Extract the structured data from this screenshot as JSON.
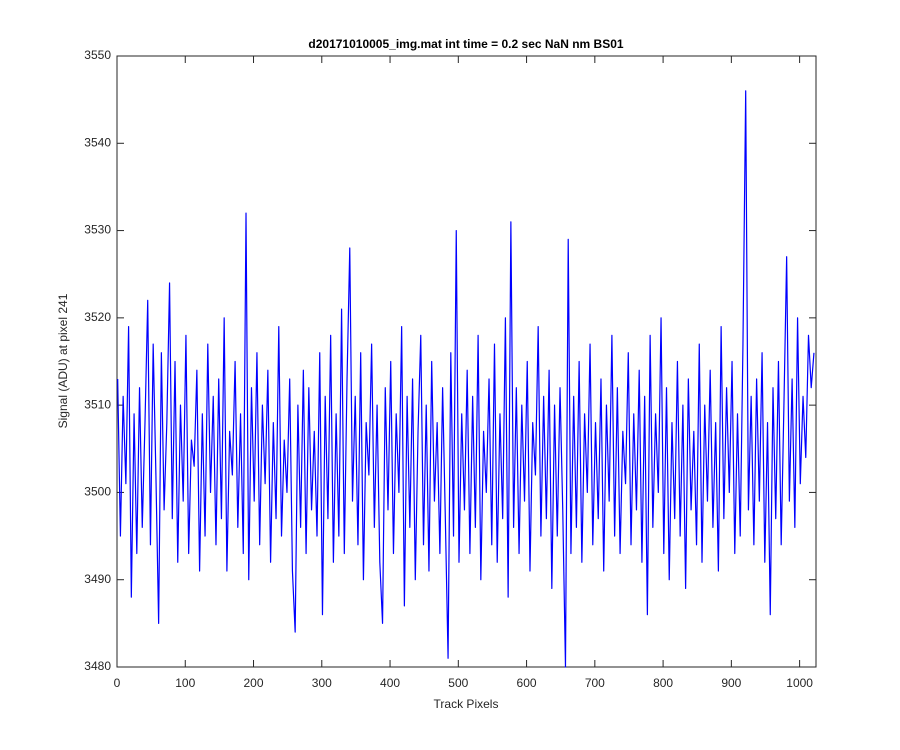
{
  "chart_data": {
    "type": "line",
    "title": "d20171010005_img.mat int time = 0.2 sec  NaN nm BS01",
    "xlabel": "Track Pixels",
    "ylabel": "Signal (ADU) at pixel 241",
    "xlim": [
      0,
      1024
    ],
    "ylim": [
      3480,
      3550
    ],
    "xticks": [
      0,
      100,
      200,
      300,
      400,
      500,
      600,
      700,
      800,
      900,
      1000
    ],
    "yticks": [
      3480,
      3490,
      3500,
      3510,
      3520,
      3530,
      3540,
      3550
    ],
    "grid": false,
    "x": [
      1,
      5,
      9,
      13,
      17,
      21,
      25,
      29,
      33,
      37,
      41,
      45,
      49,
      53,
      57,
      61,
      65,
      69,
      73,
      77,
      81,
      85,
      89,
      93,
      97,
      101,
      105,
      109,
      113,
      117,
      121,
      125,
      129,
      133,
      137,
      141,
      145,
      149,
      153,
      157,
      161,
      165,
      169,
      173,
      177,
      181,
      185,
      189,
      193,
      197,
      201,
      205,
      209,
      213,
      217,
      221,
      225,
      229,
      233,
      237,
      241,
      245,
      249,
      253,
      257,
      261,
      265,
      269,
      273,
      277,
      281,
      285,
      289,
      293,
      297,
      301,
      305,
      309,
      313,
      317,
      321,
      325,
      329,
      333,
      337,
      341,
      345,
      349,
      353,
      357,
      361,
      365,
      369,
      373,
      377,
      381,
      385,
      389,
      393,
      397,
      401,
      405,
      409,
      413,
      417,
      421,
      425,
      429,
      433,
      437,
      441,
      445,
      449,
      453,
      457,
      461,
      465,
      469,
      473,
      477,
      481,
      485,
      489,
      493,
      497,
      501,
      505,
      509,
      513,
      517,
      521,
      525,
      529,
      533,
      537,
      541,
      545,
      549,
      553,
      557,
      561,
      565,
      569,
      573,
      577,
      581,
      585,
      589,
      593,
      597,
      601,
      605,
      609,
      613,
      617,
      621,
      625,
      629,
      633,
      637,
      641,
      645,
      649,
      653,
      657,
      661,
      665,
      669,
      673,
      677,
      681,
      685,
      689,
      693,
      697,
      701,
      705,
      709,
      713,
      717,
      721,
      725,
      729,
      733,
      737,
      741,
      745,
      749,
      753,
      757,
      761,
      765,
      769,
      773,
      777,
      781,
      785,
      789,
      793,
      797,
      801,
      805,
      809,
      813,
      817,
      821,
      825,
      829,
      833,
      837,
      841,
      845,
      849,
      853,
      857,
      861,
      865,
      869,
      873,
      877,
      881,
      885,
      889,
      893,
      897,
      901,
      905,
      909,
      913,
      917,
      921,
      925,
      929,
      933,
      937,
      941,
      945,
      949,
      953,
      957,
      961,
      965,
      969,
      973,
      977,
      981,
      985,
      989,
      993,
      997,
      1001,
      1005,
      1009,
      1013,
      1017,
      1021
    ],
    "series": [
      {
        "color": "#0000ff",
        "values": [
          3513,
          3495,
          3511,
          3501,
          3519,
          3488,
          3509,
          3493,
          3512,
          3496,
          3508,
          3522,
          3494,
          3517,
          3502,
          3485,
          3516,
          3498,
          3508,
          3524,
          3497,
          3515,
          3492,
          3510,
          3499,
          3518,
          3493,
          3506,
          3503,
          3514,
          3491,
          3509,
          3495,
          3517,
          3500,
          3511,
          3494,
          3513,
          3497,
          3520,
          3491,
          3507,
          3502,
          3515,
          3496,
          3509,
          3493,
          3532,
          3490,
          3512,
          3499,
          3516,
          3494,
          3510,
          3501,
          3514,
          3492,
          3508,
          3497,
          3519,
          3495,
          3506,
          3500,
          3513,
          3491,
          3484,
          3510,
          3496,
          3514,
          3493,
          3512,
          3498,
          3507,
          3495,
          3516,
          3486,
          3511,
          3497,
          3518,
          3492,
          3509,
          3495,
          3521,
          3493,
          3513,
          3528,
          3499,
          3511,
          3494,
          3516,
          3490,
          3508,
          3502,
          3517,
          3496,
          3510,
          3492,
          3485,
          3512,
          3498,
          3515,
          3493,
          3509,
          3500,
          3519,
          3487,
          3511,
          3496,
          3513,
          3490,
          3507,
          3518,
          3494,
          3510,
          3491,
          3515,
          3499,
          3508,
          3493,
          3512,
          3497,
          3481,
          3516,
          3495,
          3530,
          3492,
          3509,
          3498,
          3514,
          3493,
          3511,
          3496,
          3518,
          3490,
          3507,
          3500,
          3513,
          3494,
          3517,
          3492,
          3509,
          3497,
          3520,
          3488,
          3531,
          3496,
          3512,
          3493,
          3510,
          3499,
          3515,
          3491,
          3508,
          3502,
          3519,
          3495,
          3511,
          3497,
          3514,
          3489,
          3510,
          3495,
          3512,
          3498,
          3480,
          3529,
          3493,
          3511,
          3496,
          3515,
          3492,
          3509,
          3500,
          3517,
          3494,
          3508,
          3497,
          3513,
          3491,
          3510,
          3499,
          3518,
          3495,
          3512,
          3493,
          3507,
          3501,
          3516,
          3494,
          3509,
          3498,
          3514,
          3492,
          3511,
          3486,
          3518,
          3496,
          3509,
          3500,
          3520,
          3493,
          3512,
          3490,
          3508,
          3497,
          3515,
          3495,
          3510,
          3489,
          3513,
          3498,
          3507,
          3494,
          3517,
          3492,
          3510,
          3499,
          3514,
          3496,
          3508,
          3491,
          3519,
          3497,
          3512,
          3500,
          3515,
          3493,
          3509,
          3495,
          3517,
          3546,
          3498,
          3511,
          3494,
          3513,
          3499,
          3516,
          3492,
          3508,
          3486,
          3512,
          3497,
          3515,
          3494,
          3510,
          3527,
          3499,
          3513,
          3496,
          3520,
          3501,
          3511,
          3504,
          3518,
          3512,
          3516
        ]
      }
    ]
  }
}
